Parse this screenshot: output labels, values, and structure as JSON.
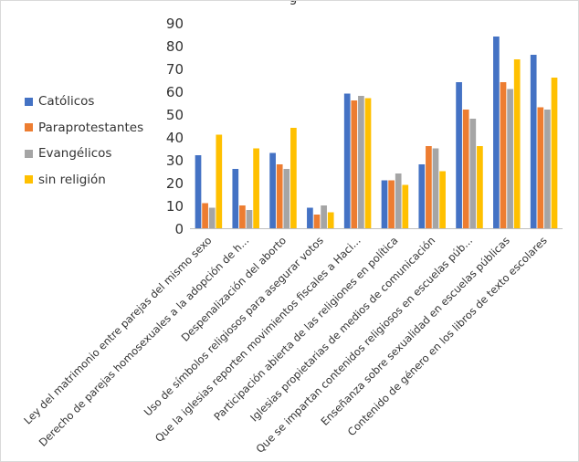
{
  "chart_data": {
    "type": "bar",
    "title": "g",
    "xlabel": "",
    "ylabel": "",
    "ylim": [
      0,
      90
    ],
    "yticks": [
      "0",
      "10",
      "20",
      "30",
      "40",
      "50",
      "60",
      "70",
      "80",
      "90"
    ],
    "grid": false,
    "legend_position": "left",
    "categories": [
      "Ley del matrimonio entre parejas del mismo sexo",
      "Derecho de parejas homosexuales a la adopción de h...",
      "Despenalización del aborto",
      "Uso de símbolos religiosos para asegurar votos",
      "Que la iglesias reporten movimientos fiscales a Haci...",
      "Participación abierta de las religiones en política",
      "Iglesias propietarias de medios de comunicación",
      "Que se impartan contenidos religiosos en escuelas púb...",
      "Enseñanza sobre sexualidad en escuelas públicas",
      "Contenido de género en los libros de texto escolares"
    ],
    "series": [
      {
        "name": "Católicos",
        "color": "#4472c4",
        "values": [
          32,
          26,
          33,
          9,
          59,
          21,
          28,
          64,
          84,
          76
        ]
      },
      {
        "name": "Paraprotestantes",
        "color": "#ed7d31",
        "values": [
          11,
          10,
          28,
          6,
          56,
          21,
          36,
          52,
          64,
          53
        ]
      },
      {
        "name": "Evangélicos",
        "color": "#a5a5a5",
        "values": [
          9,
          8,
          26,
          10,
          58,
          24,
          35,
          48,
          61,
          52
        ]
      },
      {
        "name": "sin religión",
        "color": "#ffc000",
        "values": [
          41,
          35,
          44,
          7,
          57,
          19,
          25,
          36,
          74,
          66
        ]
      }
    ]
  }
}
